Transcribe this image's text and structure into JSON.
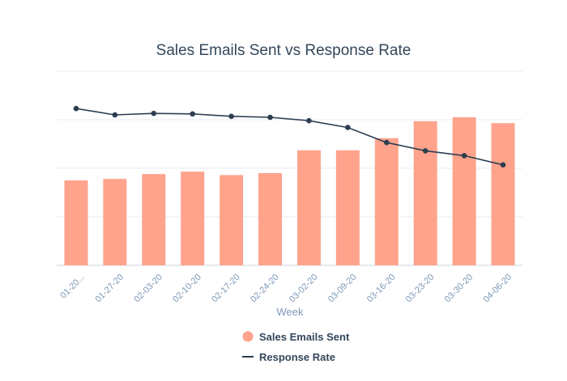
{
  "chart_data": {
    "type": "bar",
    "title": "Sales Emails Sent vs Response Rate",
    "xlabel": "Week",
    "ylabel": "",
    "categories": [
      "01-20...",
      "01-27-20",
      "02-03-20",
      "02-10-20",
      "02-17-20",
      "02-24-20",
      "03-02-20",
      "03-09-20",
      "03-16-20",
      "03-23-20",
      "03-30-20",
      "04-06-20"
    ],
    "ylim": [
      0,
      4
    ],
    "grid": true,
    "legend_position": "bottom",
    "series": [
      {
        "name": "Sales Emails Sent",
        "type": "bar",
        "color": "#ffa38c",
        "values": [
          1.75,
          1.78,
          1.88,
          1.93,
          1.86,
          1.9,
          2.37,
          2.37,
          2.62,
          2.97,
          3.05,
          2.93
        ]
      },
      {
        "name": "Response Rate",
        "type": "line",
        "color": "#2d3e50",
        "values": [
          3.23,
          3.1,
          3.13,
          3.12,
          3.07,
          3.05,
          2.98,
          2.84,
          2.53,
          2.36,
          2.26,
          2.07
        ]
      }
    ]
  }
}
